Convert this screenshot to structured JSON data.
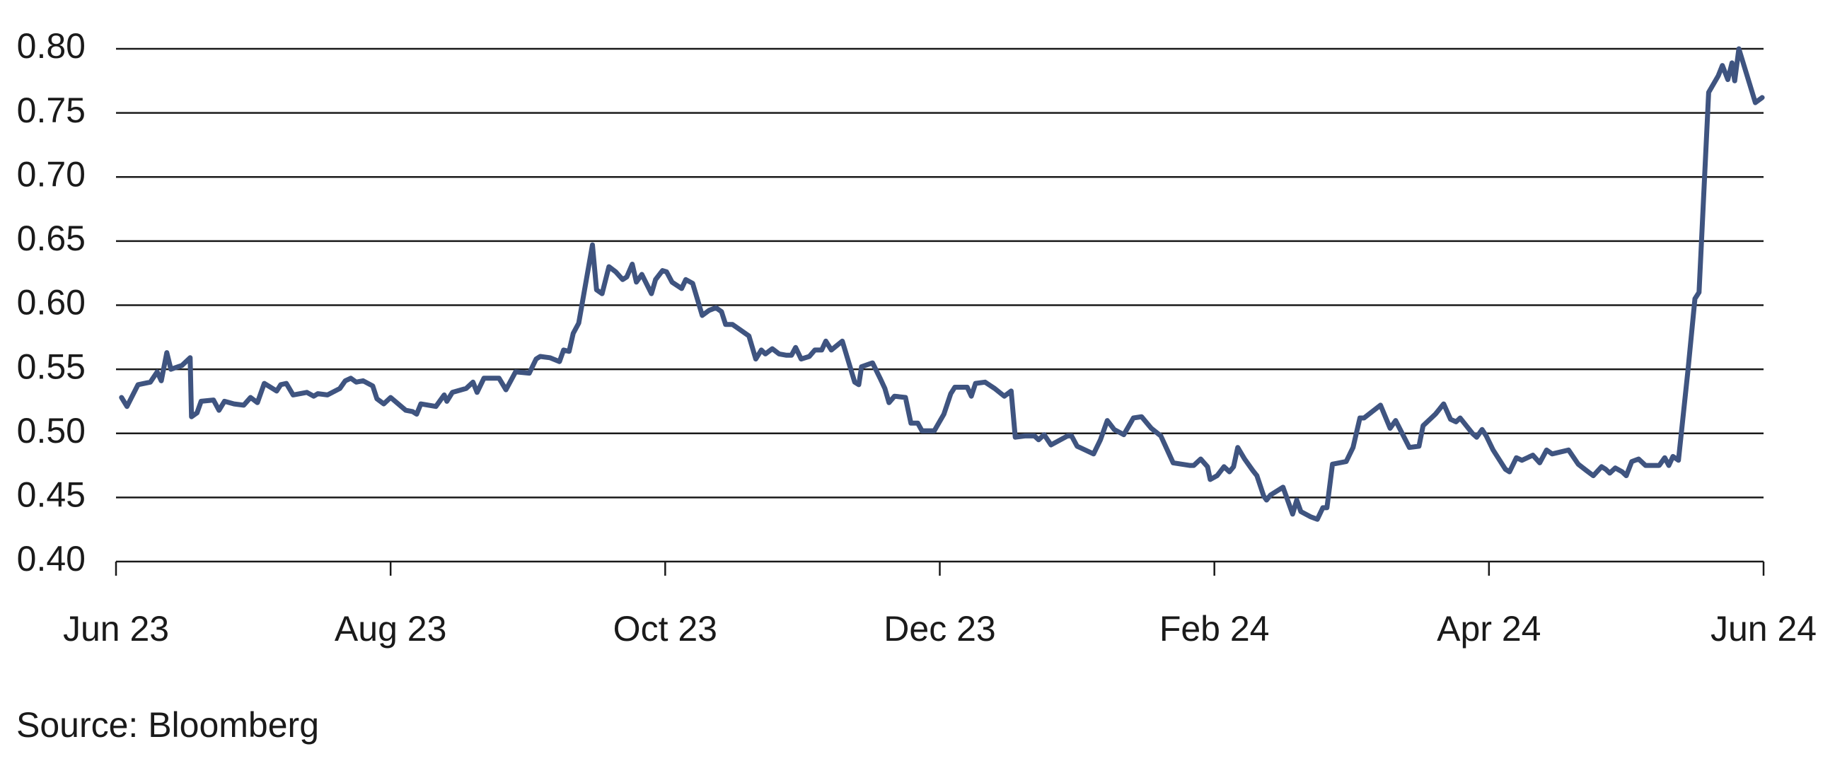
{
  "chart_data": {
    "type": "line",
    "source": "Source: Bloomberg",
    "xlim": [
      0,
      12
    ],
    "xticks": [
      {
        "value": 0,
        "label": "Jun 23"
      },
      {
        "value": 2,
        "label": "Aug 23"
      },
      {
        "value": 4,
        "label": "Oct 23"
      },
      {
        "value": 6,
        "label": "Dec 23"
      },
      {
        "value": 8,
        "label": "Feb 24"
      },
      {
        "value": 10,
        "label": "Apr 24"
      },
      {
        "value": 12,
        "label": "Jun 24"
      }
    ],
    "ylim": [
      0.4,
      0.8
    ],
    "yticks": [
      {
        "value": 0.4,
        "label": "0.40"
      },
      0.45,
      {
        "value": 0.5,
        "label": "0.50"
      },
      0.55,
      {
        "value": 0.6,
        "label": "0.60"
      },
      0.65,
      {
        "value": 0.7,
        "label": "0.70"
      },
      0.75,
      {
        "value": 0.8,
        "label": "0.80"
      }
    ],
    "grid": true,
    "series": [
      {
        "color": "#3f5480",
        "x": [
          0.04,
          0.08,
          0.16,
          0.25,
          0.3,
          0.33,
          0.37,
          0.4,
          0.48,
          0.54,
          0.55,
          0.59,
          0.62,
          0.71,
          0.75,
          0.79,
          0.86,
          0.93,
          0.98,
          1.03,
          1.08,
          1.17,
          1.2,
          1.24,
          1.29,
          1.39,
          1.44,
          1.47,
          1.54,
          1.63,
          1.67,
          1.71,
          1.75,
          1.8,
          1.87,
          1.9,
          1.95,
          2.0,
          2.11,
          2.16,
          2.19,
          2.22,
          2.33,
          2.39,
          2.41,
          2.45,
          2.55,
          2.6,
          2.63,
          2.68,
          2.79,
          2.84,
          2.91,
          3.01,
          3.06,
          3.09,
          3.16,
          3.23,
          3.26,
          3.3,
          3.33,
          3.37,
          3.47,
          3.5,
          3.54,
          3.59,
          3.64,
          3.69,
          3.72,
          3.76,
          3.79,
          3.83,
          3.9,
          3.93,
          3.98,
          4.01,
          4.05,
          4.12,
          4.15,
          4.2,
          4.27,
          4.32,
          4.37,
          4.41,
          4.44,
          4.49,
          4.53,
          4.61,
          4.66,
          4.7,
          4.73,
          4.78,
          4.83,
          4.88,
          4.92,
          4.95,
          4.99,
          5.05,
          5.09,
          5.14,
          5.17,
          5.21,
          5.29,
          5.38,
          5.41,
          5.43,
          5.51,
          5.57,
          5.6,
          5.63,
          5.67,
          5.75,
          5.79,
          5.84,
          5.87,
          5.96,
          6.03,
          6.08,
          6.11,
          6.2,
          6.23,
          6.26,
          6.33,
          6.4,
          6.47,
          6.52,
          6.55,
          6.62,
          6.69,
          6.72,
          6.76,
          6.81,
          6.93,
          6.96,
          7.0,
          7.12,
          7.17,
          7.22,
          7.27,
          7.34,
          7.41,
          7.47,
          7.54,
          7.61,
          7.7,
          7.82,
          7.85,
          7.9,
          7.95,
          7.97,
          8.02,
          8.07,
          8.11,
          8.14,
          8.17,
          8.22,
          8.28,
          8.31,
          8.36,
          8.38,
          8.41,
          8.5,
          8.57,
          8.6,
          8.63,
          8.7,
          8.75,
          8.79,
          8.82,
          8.86,
          8.96,
          9.01,
          9.06,
          9.09,
          9.15,
          9.21,
          9.28,
          9.32,
          9.42,
          9.49,
          9.52,
          9.61,
          9.67,
          9.72,
          9.76,
          9.79,
          9.88,
          9.91,
          9.95,
          9.98,
          10.03,
          10.12,
          10.15,
          10.2,
          10.24,
          10.32,
          10.37,
          10.42,
          10.46,
          10.58,
          10.65,
          10.71,
          10.76,
          10.82,
          10.85,
          10.88,
          10.92,
          10.97,
          11.0,
          11.04,
          11.09,
          11.14,
          11.24,
          11.28,
          11.31,
          11.34,
          11.38,
          11.45,
          11.5,
          11.53,
          11.6,
          11.67,
          11.7,
          11.74,
          11.77,
          11.79,
          11.82,
          11.94,
          11.99
        ],
        "values": [
          0.528,
          0.521,
          0.538,
          0.54,
          0.548,
          0.541,
          0.563,
          0.55,
          0.553,
          0.559,
          0.513,
          0.516,
          0.525,
          0.526,
          0.518,
          0.525,
          0.523,
          0.522,
          0.528,
          0.524,
          0.539,
          0.533,
          0.538,
          0.539,
          0.53,
          0.532,
          0.529,
          0.531,
          0.53,
          0.535,
          0.541,
          0.543,
          0.54,
          0.541,
          0.537,
          0.527,
          0.523,
          0.528,
          0.518,
          0.517,
          0.515,
          0.523,
          0.521,
          0.53,
          0.525,
          0.532,
          0.535,
          0.54,
          0.532,
          0.543,
          0.543,
          0.534,
          0.548,
          0.547,
          0.558,
          0.56,
          0.559,
          0.556,
          0.565,
          0.564,
          0.578,
          0.586,
          0.647,
          0.612,
          0.609,
          0.63,
          0.626,
          0.62,
          0.622,
          0.632,
          0.618,
          0.624,
          0.609,
          0.62,
          0.627,
          0.626,
          0.618,
          0.613,
          0.62,
          0.617,
          0.592,
          0.596,
          0.598,
          0.595,
          0.585,
          0.585,
          0.582,
          0.576,
          0.558,
          0.565,
          0.562,
          0.566,
          0.562,
          0.561,
          0.561,
          0.567,
          0.558,
          0.56,
          0.565,
          0.565,
          0.572,
          0.565,
          0.572,
          0.54,
          0.538,
          0.552,
          0.555,
          0.542,
          0.535,
          0.524,
          0.529,
          0.528,
          0.508,
          0.508,
          0.502,
          0.502,
          0.515,
          0.531,
          0.536,
          0.536,
          0.529,
          0.539,
          0.54,
          0.535,
          0.529,
          0.533,
          0.497,
          0.498,
          0.498,
          0.495,
          0.499,
          0.491,
          0.498,
          0.498,
          0.49,
          0.484,
          0.495,
          0.51,
          0.503,
          0.499,
          0.512,
          0.513,
          0.504,
          0.498,
          0.477,
          0.475,
          0.475,
          0.48,
          0.474,
          0.464,
          0.467,
          0.474,
          0.47,
          0.474,
          0.489,
          0.48,
          0.471,
          0.467,
          0.451,
          0.448,
          0.452,
          0.458,
          0.437,
          0.448,
          0.439,
          0.435,
          0.433,
          0.442,
          0.442,
          0.476,
          0.478,
          0.489,
          0.512,
          0.512,
          0.517,
          0.522,
          0.504,
          0.51,
          0.489,
          0.49,
          0.506,
          0.515,
          0.523,
          0.511,
          0.509,
          0.512,
          0.5,
          0.497,
          0.503,
          0.498,
          0.487,
          0.472,
          0.47,
          0.481,
          0.479,
          0.483,
          0.477,
          0.487,
          0.484,
          0.487,
          0.476,
          0.471,
          0.467,
          0.474,
          0.472,
          0.469,
          0.473,
          0.47,
          0.467,
          0.478,
          0.48,
          0.475,
          0.475,
          0.481,
          0.475,
          0.482,
          0.479,
          0.55,
          0.605,
          0.61,
          0.766,
          0.779,
          0.787,
          0.776,
          0.789,
          0.775,
          0.8,
          0.758,
          0.762
        ]
      }
    ]
  }
}
